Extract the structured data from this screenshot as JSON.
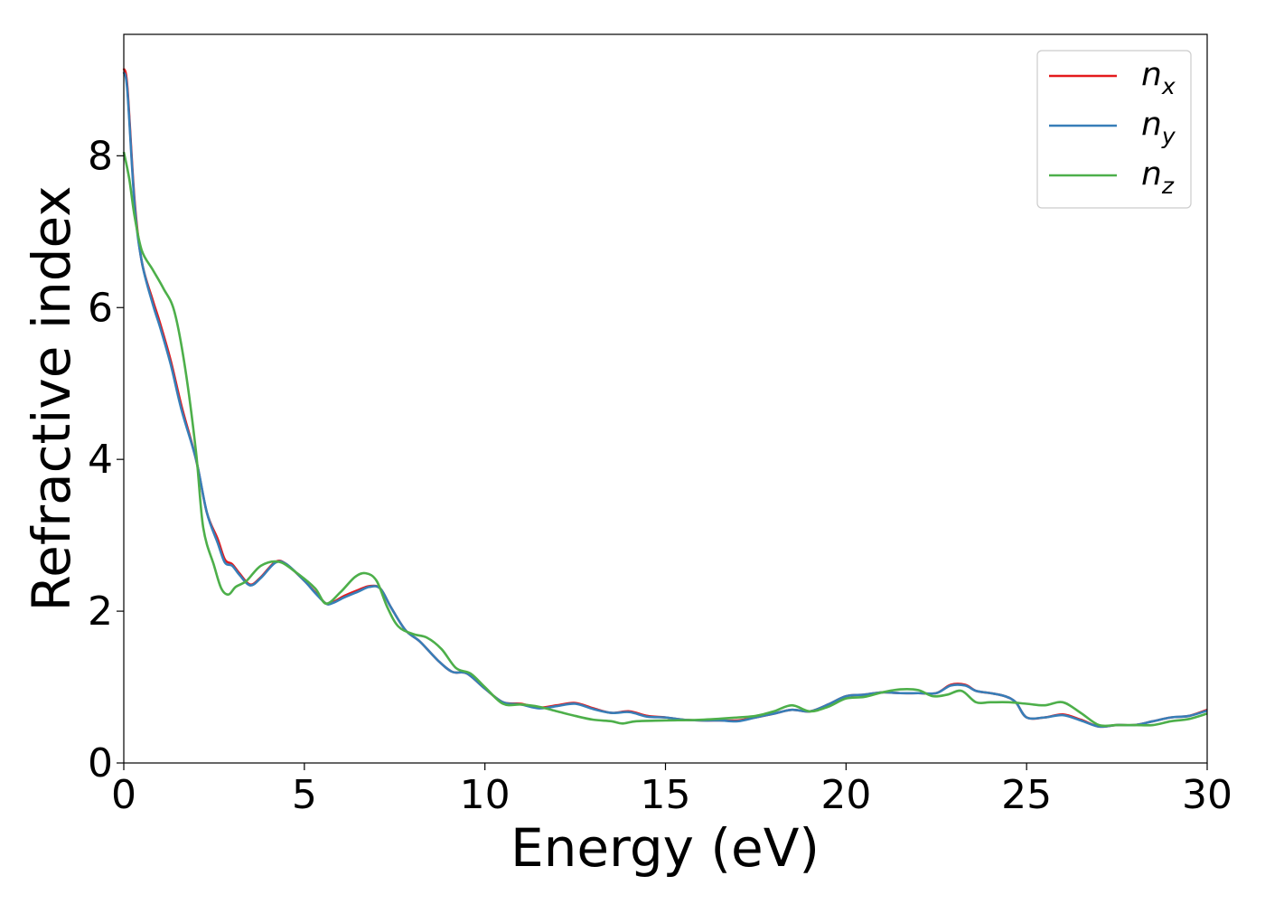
{
  "chart_data": {
    "type": "line",
    "title": "",
    "xlabel": "Energy (eV)",
    "ylabel": "Refractive index",
    "xlim": [
      0,
      30
    ],
    "ylim": [
      0,
      9.6
    ],
    "xticks": [
      0,
      5,
      10,
      15,
      20,
      25,
      30
    ],
    "yticks": [
      0,
      2,
      4,
      6,
      8
    ],
    "grid": false,
    "legend_position": "top-right",
    "series": [
      {
        "name": "n_x",
        "label_base": "n",
        "label_sub": "x",
        "color": "#e41a1c",
        "x": [
          0,
          0.1,
          0.3,
          0.5,
          0.8,
          1.0,
          1.3,
          1.6,
          2.0,
          2.3,
          2.6,
          2.8,
          3.0,
          3.2,
          3.5,
          3.8,
          4.2,
          4.5,
          5.0,
          5.3,
          5.6,
          5.8,
          6.1,
          6.5,
          6.8,
          7.1,
          7.4,
          7.8,
          8.2,
          8.7,
          9.1,
          9.5,
          10.0,
          10.5,
          11.0,
          11.5,
          12.0,
          12.5,
          13.0,
          13.5,
          14.0,
          14.5,
          15.0,
          15.5,
          16.0,
          16.5,
          17.0,
          17.5,
          18.0,
          18.5,
          19.0,
          19.5,
          20.0,
          20.5,
          21.0,
          21.5,
          22.0,
          22.5,
          22.9,
          23.3,
          23.6,
          24.0,
          24.4,
          24.7,
          25.0,
          25.5,
          26.0,
          26.5,
          27.0,
          27.5,
          28.0,
          28.5,
          29.0,
          29.5,
          30.0
        ],
        "y": [
          9.15,
          8.9,
          7.4,
          6.6,
          6.1,
          5.8,
          5.3,
          4.7,
          4.0,
          3.3,
          2.95,
          2.68,
          2.62,
          2.5,
          2.35,
          2.45,
          2.65,
          2.62,
          2.4,
          2.25,
          2.1,
          2.12,
          2.2,
          2.28,
          2.33,
          2.3,
          2.05,
          1.75,
          1.6,
          1.35,
          1.2,
          1.18,
          0.98,
          0.8,
          0.78,
          0.73,
          0.76,
          0.79,
          0.72,
          0.66,
          0.68,
          0.62,
          0.6,
          0.57,
          0.56,
          0.56,
          0.56,
          0.6,
          0.65,
          0.7,
          0.68,
          0.77,
          0.88,
          0.9,
          0.93,
          0.92,
          0.92,
          0.92,
          1.03,
          1.03,
          0.95,
          0.92,
          0.88,
          0.8,
          0.6,
          0.6,
          0.64,
          0.57,
          0.48,
          0.5,
          0.5,
          0.55,
          0.6,
          0.62,
          0.7
        ]
      },
      {
        "name": "n_y",
        "label_base": "n",
        "label_sub": "y",
        "color": "#377eb8",
        "x": [
          0,
          0.1,
          0.3,
          0.5,
          0.8,
          1.0,
          1.3,
          1.6,
          2.0,
          2.3,
          2.6,
          2.8,
          3.0,
          3.2,
          3.5,
          3.8,
          4.2,
          4.5,
          5.0,
          5.3,
          5.6,
          5.8,
          6.1,
          6.5,
          6.8,
          7.1,
          7.4,
          7.8,
          8.2,
          8.7,
          9.1,
          9.5,
          10.0,
          10.5,
          11.0,
          11.5,
          12.0,
          12.5,
          13.0,
          13.5,
          14.0,
          14.5,
          15.0,
          15.5,
          16.0,
          16.5,
          17.0,
          17.5,
          18.0,
          18.5,
          19.0,
          19.5,
          20.0,
          20.5,
          21.0,
          21.5,
          22.0,
          22.5,
          22.9,
          23.3,
          23.6,
          24.0,
          24.4,
          24.7,
          25.0,
          25.5,
          26.0,
          26.5,
          27.0,
          27.5,
          28.0,
          28.5,
          29.0,
          29.5,
          30.0
        ],
        "y": [
          9.1,
          8.85,
          7.35,
          6.6,
          6.05,
          5.75,
          5.25,
          4.65,
          4.0,
          3.3,
          2.9,
          2.64,
          2.6,
          2.48,
          2.34,
          2.44,
          2.64,
          2.62,
          2.4,
          2.24,
          2.1,
          2.11,
          2.18,
          2.26,
          2.32,
          2.3,
          2.05,
          1.75,
          1.6,
          1.35,
          1.2,
          1.18,
          0.98,
          0.8,
          0.77,
          0.72,
          0.75,
          0.78,
          0.71,
          0.66,
          0.67,
          0.61,
          0.6,
          0.57,
          0.56,
          0.56,
          0.55,
          0.6,
          0.65,
          0.7,
          0.68,
          0.77,
          0.88,
          0.9,
          0.93,
          0.92,
          0.92,
          0.92,
          1.02,
          1.02,
          0.95,
          0.92,
          0.88,
          0.8,
          0.6,
          0.6,
          0.63,
          0.56,
          0.48,
          0.5,
          0.5,
          0.55,
          0.6,
          0.62,
          0.69
        ]
      },
      {
        "name": "n_z",
        "label_base": "n",
        "label_sub": "z",
        "color": "#4daf4a",
        "x": [
          0,
          0.15,
          0.3,
          0.5,
          0.8,
          1.1,
          1.4,
          1.7,
          2.0,
          2.2,
          2.5,
          2.7,
          2.9,
          3.1,
          3.4,
          3.8,
          4.3,
          4.8,
          5.3,
          5.6,
          6.0,
          6.4,
          6.7,
          7.0,
          7.3,
          7.6,
          8.0,
          8.4,
          8.8,
          9.2,
          9.6,
          10.0,
          10.5,
          11.0,
          11.5,
          12.0,
          12.5,
          13.0,
          13.5,
          13.8,
          14.2,
          15.0,
          16.0,
          17.0,
          17.5,
          18.0,
          18.5,
          19.0,
          19.5,
          20.0,
          20.5,
          21.0,
          21.5,
          22.0,
          22.4,
          22.8,
          23.2,
          23.6,
          24.0,
          24.5,
          25.0,
          25.5,
          26.0,
          26.5,
          27.0,
          27.5,
          28.0,
          28.5,
          29.0,
          29.5,
          30.0
        ],
        "y": [
          8.05,
          7.7,
          7.2,
          6.75,
          6.5,
          6.25,
          5.95,
          5.2,
          4.1,
          3.1,
          2.6,
          2.3,
          2.22,
          2.32,
          2.4,
          2.6,
          2.65,
          2.5,
          2.3,
          2.1,
          2.25,
          2.45,
          2.5,
          2.4,
          2.05,
          1.8,
          1.7,
          1.65,
          1.5,
          1.25,
          1.18,
          1.0,
          0.78,
          0.77,
          0.74,
          0.68,
          0.62,
          0.57,
          0.55,
          0.52,
          0.55,
          0.56,
          0.57,
          0.6,
          0.62,
          0.68,
          0.76,
          0.68,
          0.74,
          0.85,
          0.87,
          0.93,
          0.97,
          0.96,
          0.88,
          0.9,
          0.95,
          0.8,
          0.8,
          0.8,
          0.78,
          0.76,
          0.8,
          0.66,
          0.5,
          0.5,
          0.5,
          0.5,
          0.55,
          0.58,
          0.65
        ]
      }
    ]
  }
}
